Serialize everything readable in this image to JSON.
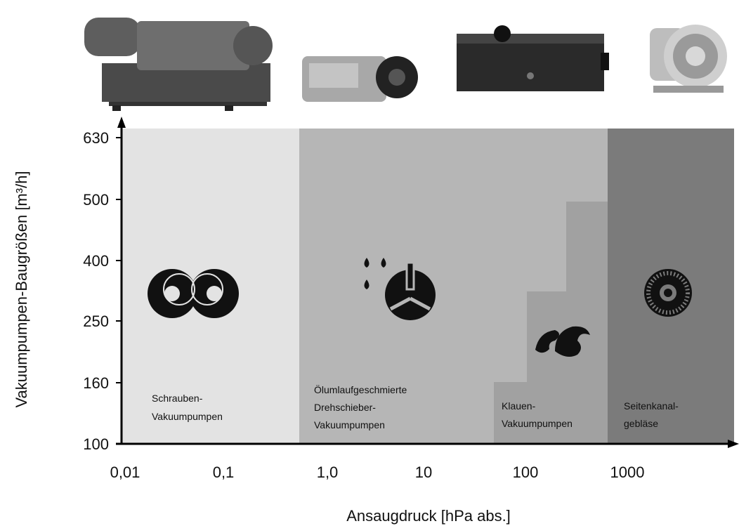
{
  "y_axis": {
    "label": "Vakuumpumpen-Baugrößen [m³/h]",
    "ticks": [
      "630",
      "500",
      "400",
      "250",
      "160",
      "100"
    ]
  },
  "x_axis": {
    "label": "Ansaugdruck [hPa abs.]",
    "ticks": [
      "0,01",
      "0,1",
      "1,0",
      "10",
      "100",
      "1000"
    ]
  },
  "regions": [
    {
      "lines": [
        "Schrauben-",
        "Vakuumpumpen"
      ]
    },
    {
      "lines": [
        "Ölumlaufgeschmierte",
        "Drehschieber-",
        "Vakuumpumpen"
      ]
    },
    {
      "lines": [
        "Klauen-",
        "Vakuumpumpen"
      ]
    },
    {
      "lines": [
        "Seitenkanal-",
        "gebläse"
      ]
    }
  ]
}
